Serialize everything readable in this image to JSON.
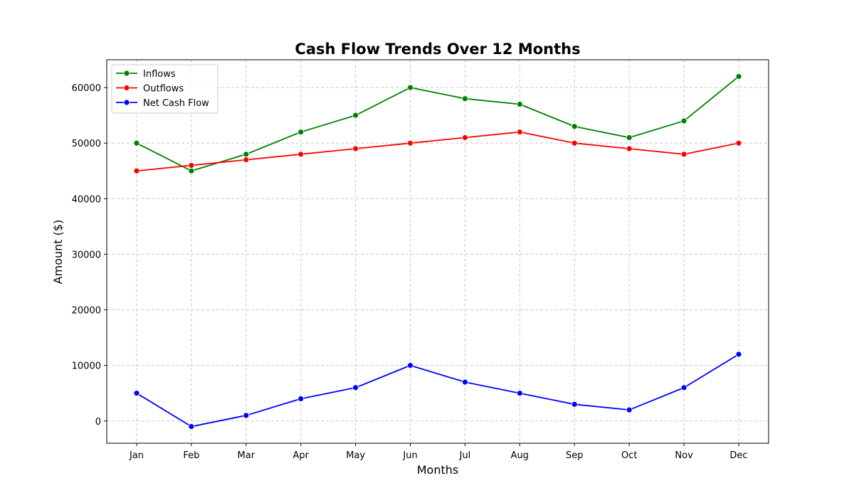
{
  "chart_data": {
    "type": "line",
    "title": "Cash Flow Trends Over 12 Months",
    "xlabel": "Months",
    "ylabel": "Amount ($)",
    "categories": [
      "Jan",
      "Feb",
      "Mar",
      "Apr",
      "May",
      "Jun",
      "Jul",
      "Aug",
      "Sep",
      "Oct",
      "Nov",
      "Dec"
    ],
    "ylim": [
      -4000,
      65000
    ],
    "yticks": [
      0,
      10000,
      20000,
      30000,
      40000,
      50000,
      60000
    ],
    "grid": true,
    "legend_position": "top-left",
    "series": [
      {
        "name": "Inflows",
        "color": "#008000",
        "values": [
          50000,
          45000,
          48000,
          52000,
          55000,
          60000,
          58000,
          57000,
          53000,
          51000,
          54000,
          62000
        ]
      },
      {
        "name": "Outflows",
        "color": "#ff0000",
        "values": [
          45000,
          46000,
          47000,
          48000,
          49000,
          50000,
          51000,
          52000,
          50000,
          49000,
          48000,
          50000
        ]
      },
      {
        "name": "Net Cash Flow",
        "color": "#0000ff",
        "values": [
          5000,
          -1000,
          1000,
          4000,
          6000,
          10000,
          7000,
          5000,
          3000,
          2000,
          6000,
          12000
        ]
      }
    ]
  }
}
